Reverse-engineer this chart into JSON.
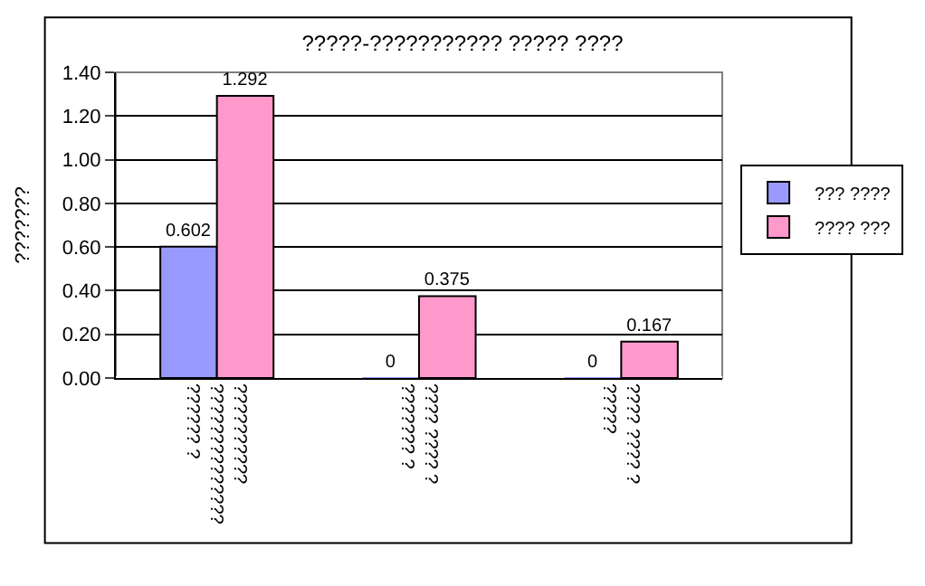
{
  "chart_data": {
    "type": "bar",
    "title": "?????-??????????? ????? ????",
    "ylabel": "???????",
    "categories": [
      "??????????\n??????????????\n?????? ?",
      "???? ???? ?\n??????? ?",
      "???? ???? ?\n?????"
    ],
    "series": [
      {
        "name": "??? ????",
        "color": "#9999ff",
        "values": [
          0.602,
          0,
          0
        ]
      },
      {
        "name": "???? ???",
        "color": "#ff99cc",
        "values": [
          1.292,
          0.375,
          0.167
        ]
      }
    ],
    "ylim": [
      0,
      1.4
    ],
    "yticks": [
      {
        "value": 0,
        "label": "0.00"
      },
      {
        "value": 0.2,
        "label": "0.20"
      },
      {
        "value": 0.4,
        "label": "0.40"
      },
      {
        "value": 0.6,
        "label": "0.60"
      },
      {
        "value": 0.8,
        "label": "0.80"
      },
      {
        "value": 1.0,
        "label": "1.00"
      },
      {
        "value": 1.2,
        "label": "1.20"
      },
      {
        "value": 1.4,
        "label": "1.40"
      }
    ],
    "grid": "y",
    "legend": "right",
    "data_labels": true
  }
}
